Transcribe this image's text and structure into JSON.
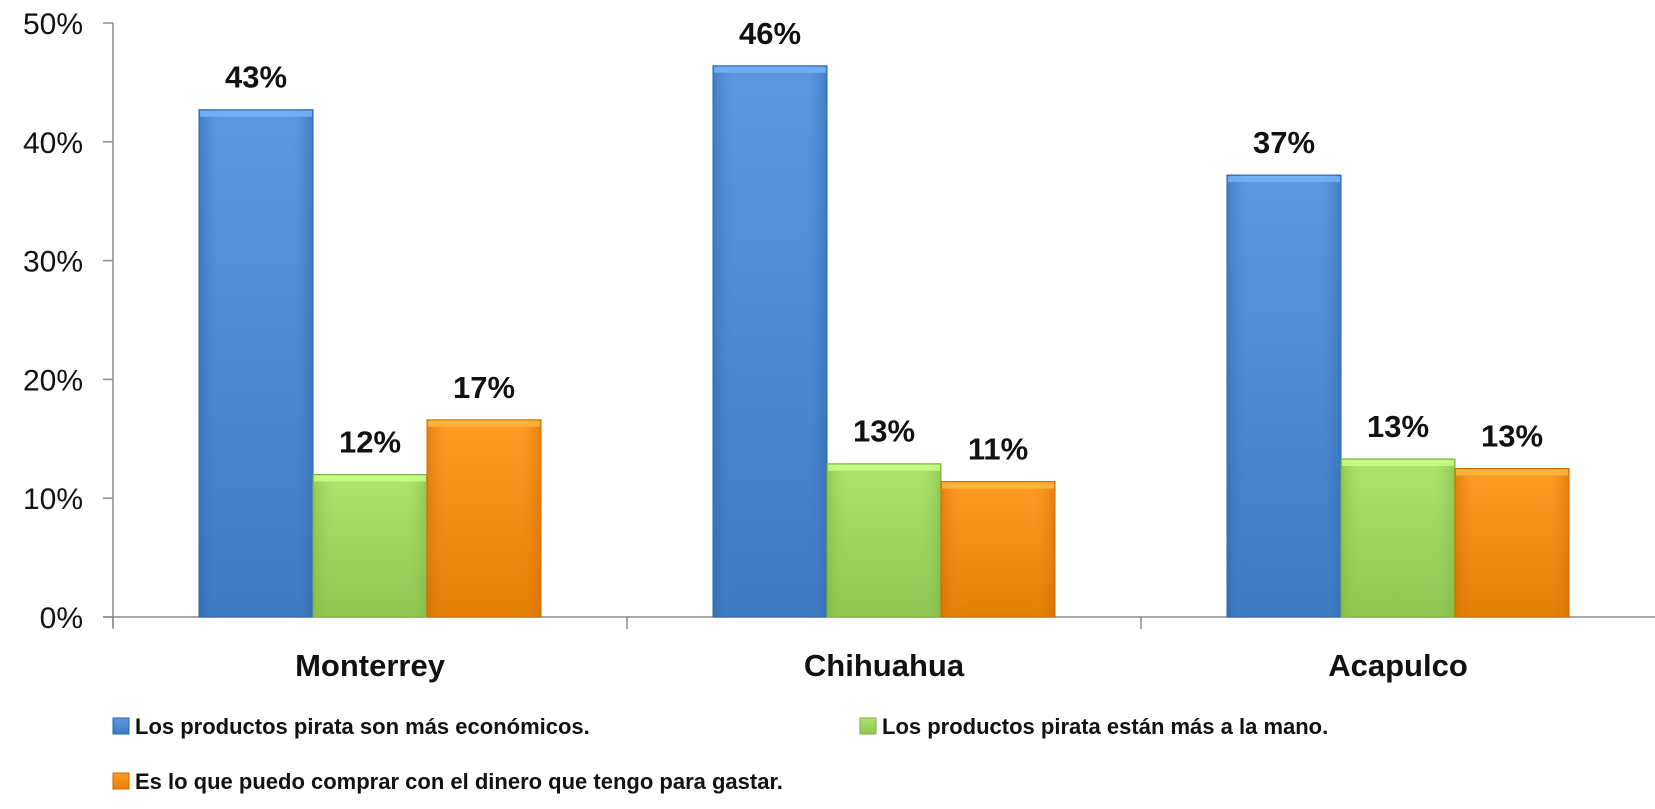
{
  "chart_data": {
    "type": "bar",
    "title": "",
    "xlabel": "",
    "ylabel": "",
    "categories": [
      "Monterrey",
      "Chihuahua",
      "Acapulco"
    ],
    "ylim": [
      0,
      50
    ],
    "yticks": [
      0,
      10,
      20,
      30,
      40,
      50
    ],
    "ytick_format": "{v}%",
    "grid": false,
    "legend_position": "bottom",
    "series": [
      {
        "name": "Los productos pirata son más económicos.",
        "color": "#4A86CE",
        "values": [
          42.7,
          46.4,
          37.2
        ],
        "labels": [
          "43%",
          "46%",
          "37%"
        ]
      },
      {
        "name": "Los productos pirata están más a la mano.",
        "color": "#9BD25E",
        "values": [
          12.0,
          12.9,
          13.3
        ],
        "labels": [
          "12%",
          "13%",
          "13%"
        ]
      },
      {
        "name": "Es lo que puedo comprar con el dinero que tengo para gastar.",
        "color": "#F08A12",
        "values": [
          16.6,
          11.4,
          12.5
        ],
        "labels": [
          "17%",
          "11%",
          "13%"
        ]
      }
    ]
  }
}
